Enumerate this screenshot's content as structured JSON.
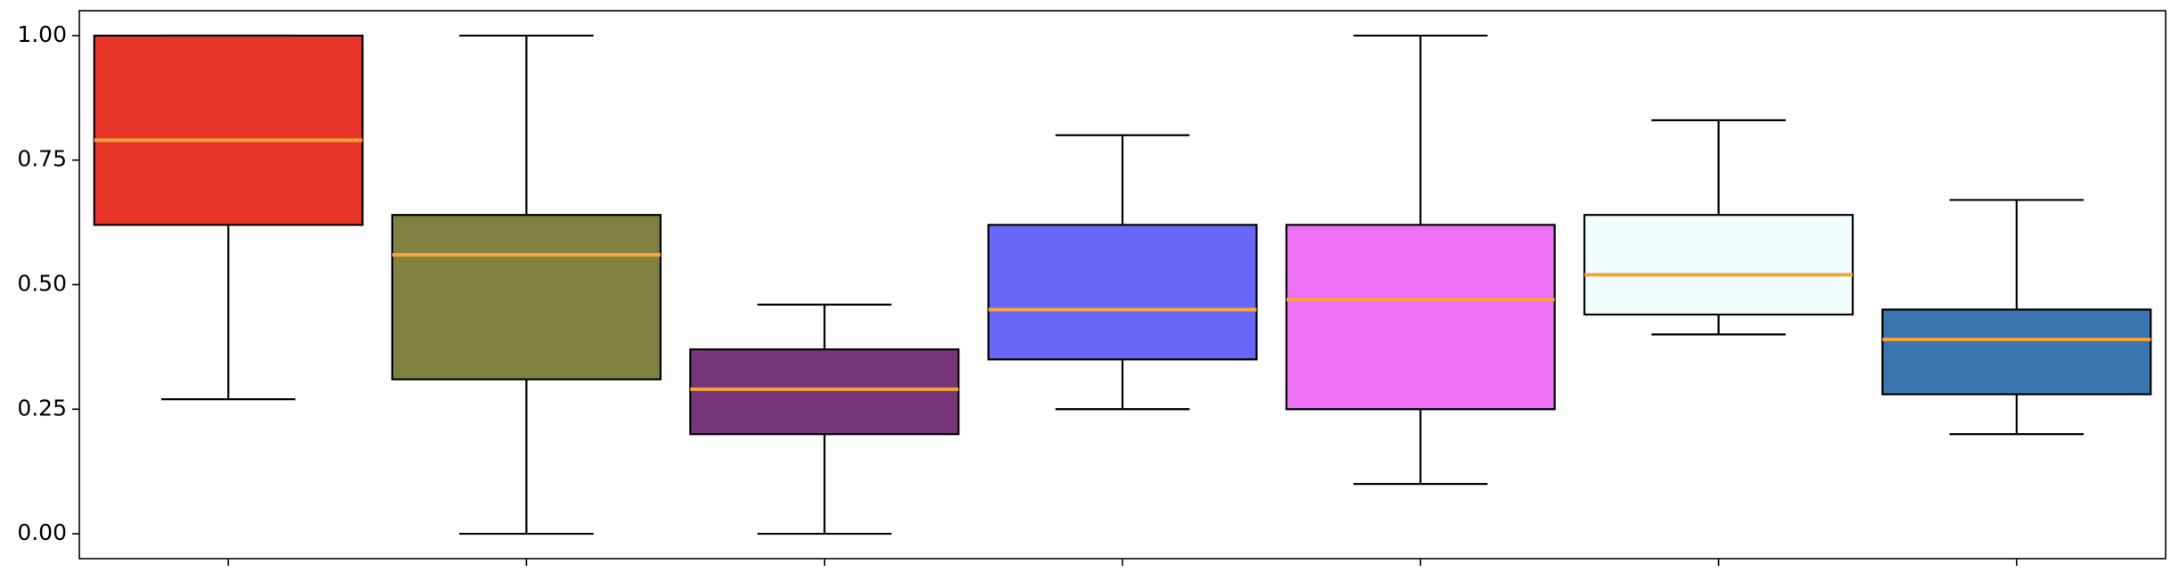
{
  "chart_data": {
    "type": "box",
    "categories": [
      null,
      null,
      null,
      null,
      null,
      null,
      null
    ],
    "boxes": [
      {
        "color": "#e8352a",
        "whislo": 0.27,
        "q1": 0.62,
        "med": 0.79,
        "q3": 1.0,
        "whishi": 1.0
      },
      {
        "color": "#808040",
        "whislo": 0.0,
        "q1": 0.31,
        "med": 0.56,
        "q3": 0.64,
        "whishi": 1.0
      },
      {
        "color": "#77357a",
        "whislo": 0.0,
        "q1": 0.2,
        "med": 0.29,
        "q3": 0.37,
        "whishi": 0.46
      },
      {
        "color": "#6868f8",
        "whislo": 0.25,
        "q1": 0.35,
        "med": 0.45,
        "q3": 0.62,
        "whishi": 0.8
      },
      {
        "color": "#ee72f5",
        "whislo": 0.1,
        "q1": 0.25,
        "med": 0.47,
        "q3": 0.62,
        "whishi": 1.0
      },
      {
        "color": "#f0fffe",
        "whislo": 0.4,
        "q1": 0.44,
        "med": 0.52,
        "q3": 0.64,
        "whishi": 0.83
      },
      {
        "color": "#3a75b0",
        "whislo": 0.2,
        "q1": 0.28,
        "med": 0.39,
        "q3": 0.45,
        "whishi": 0.67
      }
    ],
    "median_color": "#f5a33a",
    "ylim": [
      -0.05,
      1.05
    ],
    "yticks": [
      {
        "value": 0,
        "label": "0.00"
      },
      {
        "value": 0.25,
        "label": "0.25"
      },
      {
        "value": 0.5,
        "label": "0.50"
      },
      {
        "value": 0.75,
        "label": "0.75"
      },
      {
        "value": 1,
        "label": "1.00"
      }
    ],
    "grid": false
  }
}
